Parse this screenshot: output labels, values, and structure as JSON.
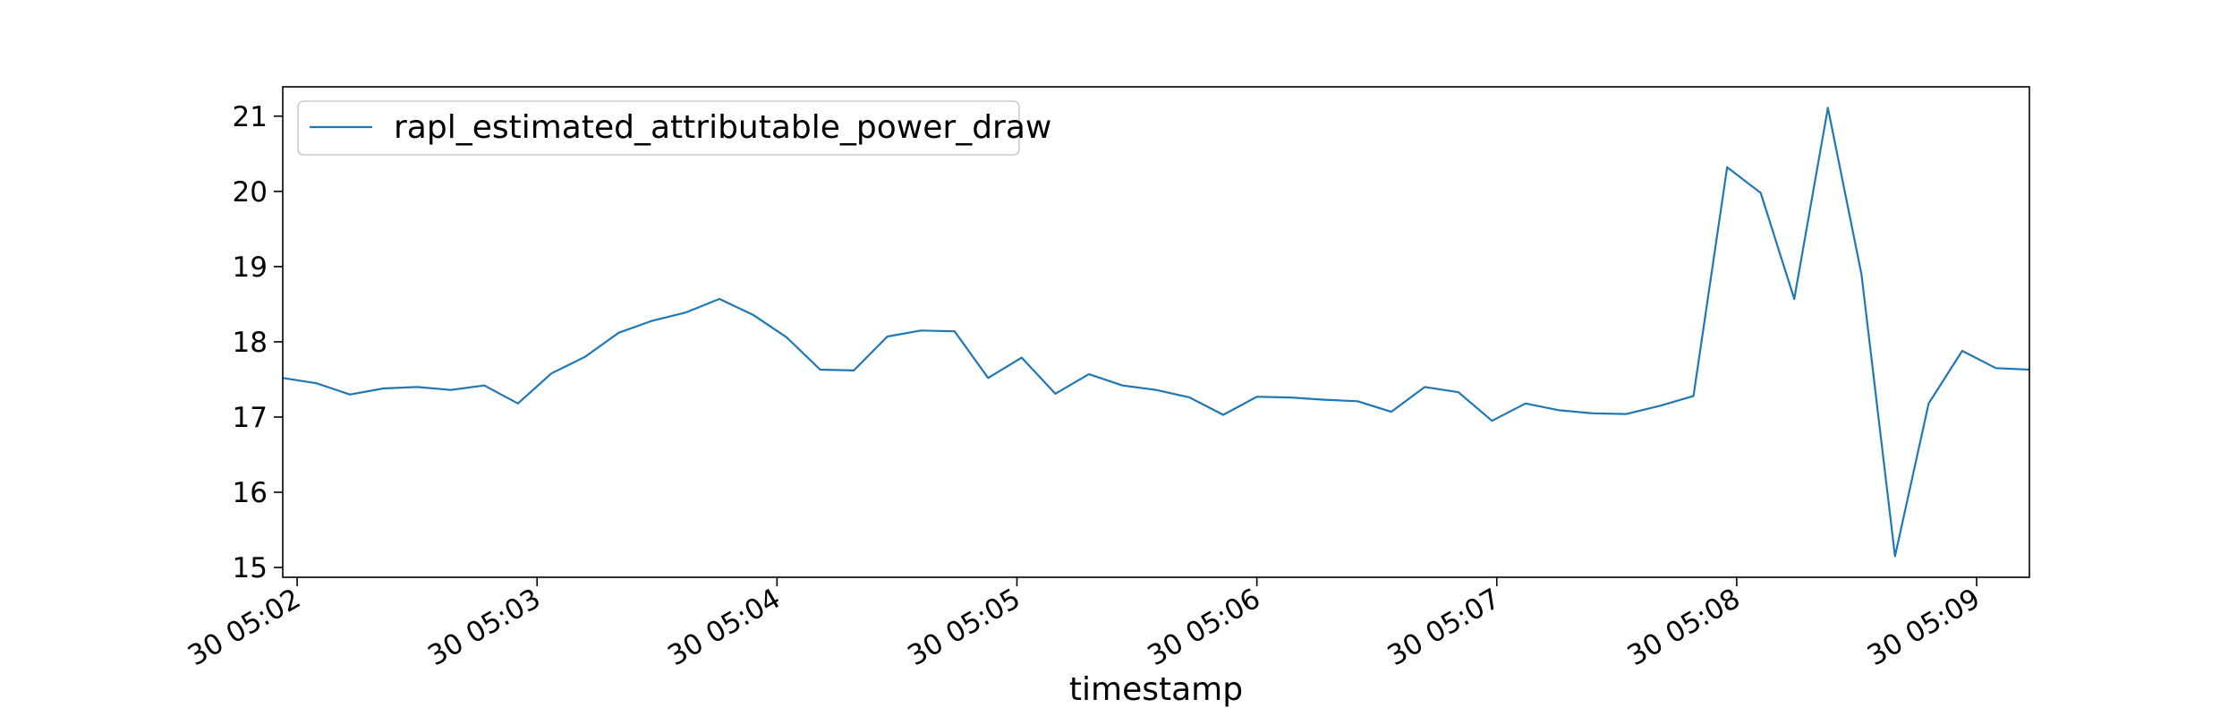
{
  "chart_data": {
    "type": "line",
    "xlabel": "timestamp",
    "ylabel": "",
    "x_tick_labels": [
      "30 05:02",
      "30 05:03",
      "30 05:04",
      "30 05:05",
      "30 05:06",
      "30 05:07",
      "30 05:08",
      "30 05:09"
    ],
    "x_ticks_minutes": [
      2,
      3,
      4,
      5,
      6,
      7,
      8,
      9
    ],
    "xlim_minutes": [
      1.94,
      9.22
    ],
    "y_tick_labels": [
      "15",
      "16",
      "17",
      "18",
      "19",
      "20",
      "21"
    ],
    "y_ticks": [
      15,
      16,
      17,
      18,
      19,
      20,
      21
    ],
    "ylim": [
      14.87,
      21.39
    ],
    "grid": false,
    "legend_position": "top-left",
    "color": "#1f77b4",
    "series": [
      {
        "name": "rapl_estimated_attributable_power_draw",
        "x": [
          1.94,
          2.08,
          2.22,
          2.36,
          2.5,
          2.64,
          2.78,
          2.92,
          3.06,
          3.2,
          3.34,
          3.48,
          3.62,
          3.76,
          3.9,
          4.04,
          4.18,
          4.32,
          4.46,
          4.6,
          4.74,
          4.88,
          5.02,
          5.16,
          5.3,
          5.44,
          5.58,
          5.72,
          5.86,
          6.0,
          6.14,
          6.28,
          6.42,
          6.56,
          6.7,
          6.84,
          6.98,
          7.12,
          7.26,
          7.4,
          7.54,
          7.68,
          7.82,
          7.96,
          8.1,
          8.24,
          8.38,
          8.52,
          8.66,
          8.8,
          8.94,
          9.08,
          9.22
        ],
        "y": [
          17.52,
          17.45,
          17.3,
          17.38,
          17.4,
          17.36,
          17.42,
          17.18,
          17.58,
          17.8,
          18.12,
          18.28,
          18.39,
          18.57,
          18.36,
          18.06,
          17.63,
          17.62,
          18.07,
          18.15,
          18.14,
          17.52,
          17.79,
          17.31,
          17.57,
          17.42,
          17.36,
          17.26,
          17.03,
          17.27,
          17.26,
          17.23,
          17.21,
          17.07,
          17.4,
          17.33,
          16.95,
          17.18,
          17.09,
          17.05,
          17.04,
          17.15,
          17.28,
          20.32,
          19.98,
          18.57,
          21.11,
          18.9,
          15.15,
          17.18,
          17.88,
          17.65,
          17.63
        ]
      }
    ]
  }
}
